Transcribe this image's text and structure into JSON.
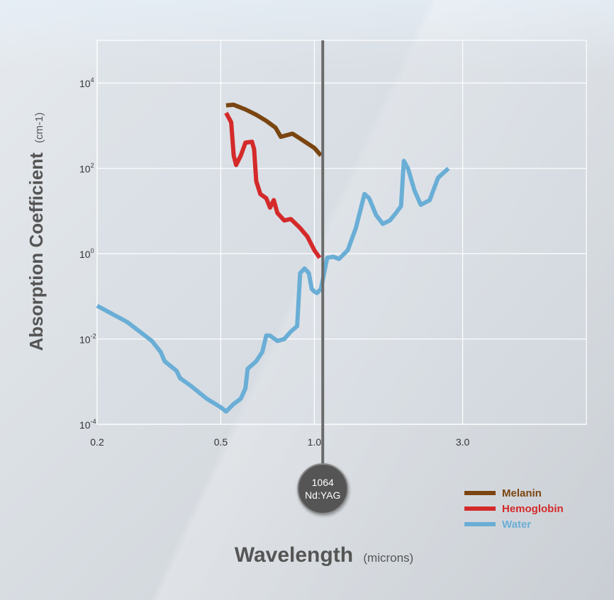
{
  "chart_data": {
    "type": "line",
    "y_scale": "log",
    "x_scale": "log",
    "xlabel": "Wavelength",
    "xlabel_unit": "(microns)",
    "ylabel": "Absorption Coefficient",
    "ylabel_unit": "(cm-1)",
    "xlim": [
      0.2,
      7.5
    ],
    "ylim": [
      0.0001,
      100000
    ],
    "x_ticks": [
      {
        "value": 0.2,
        "label": "0.2"
      },
      {
        "value": 0.5,
        "label": "0.5"
      },
      {
        "value": 1.0,
        "label": "1.0"
      },
      {
        "value": 3.0,
        "label": "3.0"
      }
    ],
    "y_ticks": [
      {
        "value": 10000,
        "base": "10",
        "exp": "4"
      },
      {
        "value": 100,
        "base": "10",
        "exp": "2"
      },
      {
        "value": 1,
        "base": "10",
        "exp": "0"
      },
      {
        "value": 0.01,
        "base": "10",
        "exp": "-2"
      },
      {
        "value": 0.0001,
        "base": "10",
        "exp": "-4"
      }
    ],
    "grid": true,
    "legend_position": "bottom-right",
    "marker": {
      "x": 1.064,
      "line1": "1064",
      "line2": "Nd:YAG"
    },
    "series": [
      {
        "name": "Melanin",
        "color": "#7a4510",
        "points": [
          [
            0.52,
            3000
          ],
          [
            0.55,
            3100
          ],
          [
            0.6,
            2400
          ],
          [
            0.65,
            1800
          ],
          [
            0.7,
            1300
          ],
          [
            0.75,
            900
          ],
          [
            0.78,
            550
          ],
          [
            0.85,
            650
          ],
          [
            0.9,
            500
          ],
          [
            1.0,
            300
          ],
          [
            1.05,
            200
          ]
        ]
      },
      {
        "name": "Hemoglobin",
        "color": "#d42a2a",
        "points": [
          [
            0.52,
            2000
          ],
          [
            0.54,
            1200
          ],
          [
            0.55,
            200
          ],
          [
            0.56,
            120
          ],
          [
            0.58,
            200
          ],
          [
            0.6,
            400
          ],
          [
            0.63,
            420
          ],
          [
            0.64,
            280
          ],
          [
            0.65,
            50
          ],
          [
            0.67,
            25
          ],
          [
            0.7,
            20
          ],
          [
            0.72,
            12
          ],
          [
            0.74,
            18
          ],
          [
            0.76,
            9
          ],
          [
            0.8,
            6
          ],
          [
            0.84,
            6.5
          ],
          [
            0.9,
            4
          ],
          [
            0.95,
            2.5
          ],
          [
            1.0,
            1.2
          ],
          [
            1.04,
            0.8
          ]
        ]
      },
      {
        "name": "Water",
        "color": "#6aaed6",
        "points": [
          [
            0.2,
            0.06
          ],
          [
            0.25,
            0.025
          ],
          [
            0.3,
            0.009
          ],
          [
            0.32,
            0.005
          ],
          [
            0.33,
            0.003
          ],
          [
            0.36,
            0.0018
          ],
          [
            0.37,
            0.0012
          ],
          [
            0.4,
            0.0008
          ],
          [
            0.45,
            0.0004
          ],
          [
            0.5,
            0.00025
          ],
          [
            0.52,
            0.0002
          ],
          [
            0.55,
            0.0003
          ],
          [
            0.58,
            0.0004
          ],
          [
            0.6,
            0.0007
          ],
          [
            0.61,
            0.002
          ],
          [
            0.65,
            0.003
          ],
          [
            0.68,
            0.005
          ],
          [
            0.7,
            0.012
          ],
          [
            0.72,
            0.012
          ],
          [
            0.76,
            0.009
          ],
          [
            0.8,
            0.01
          ],
          [
            0.84,
            0.015
          ],
          [
            0.88,
            0.02
          ],
          [
            0.9,
            0.35
          ],
          [
            0.93,
            0.45
          ],
          [
            0.96,
            0.35
          ],
          [
            0.98,
            0.15
          ],
          [
            1.0,
            0.13
          ],
          [
            1.02,
            0.12
          ],
          [
            1.05,
            0.15
          ],
          [
            1.1,
            0.8
          ],
          [
            1.15,
            0.85
          ],
          [
            1.2,
            0.75
          ],
          [
            1.28,
            1.2
          ],
          [
            1.36,
            4
          ],
          [
            1.45,
            25
          ],
          [
            1.5,
            20
          ],
          [
            1.58,
            8
          ],
          [
            1.66,
            5
          ],
          [
            1.75,
            6
          ],
          [
            1.83,
            9
          ],
          [
            1.9,
            13
          ],
          [
            1.94,
            150
          ],
          [
            2.0,
            100
          ],
          [
            2.1,
            30
          ],
          [
            2.2,
            14
          ],
          [
            2.35,
            18
          ],
          [
            2.5,
            60
          ],
          [
            2.7,
            100
          ]
        ]
      }
    ]
  }
}
